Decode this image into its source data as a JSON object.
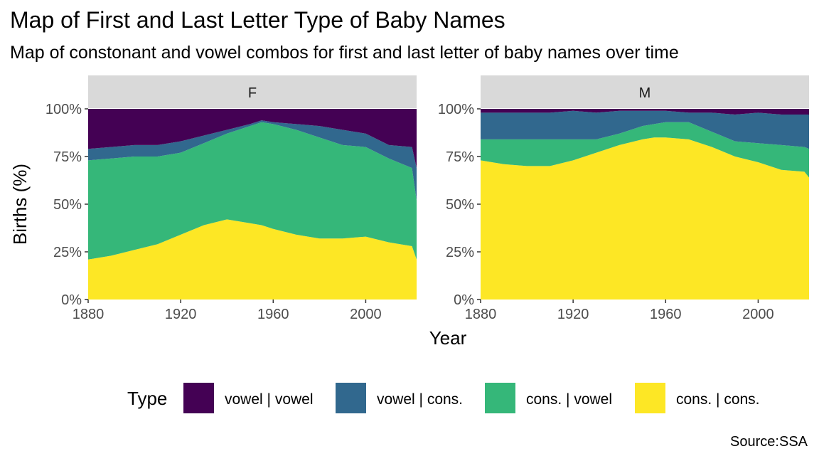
{
  "chart_data": {
    "type": "area",
    "title": "Map of First and Last Letter Type of Baby Names",
    "subtitle": "Map of constonant and vowel combos for first and last letter of baby names over time",
    "xlabel": "Year",
    "ylabel": "Births (%)",
    "caption": "Source:SSA",
    "xlim": [
      1880,
      2022
    ],
    "ylim": [
      0,
      1
    ],
    "x_ticks": [
      1880,
      1920,
      1960,
      2000
    ],
    "y_ticks": [
      0,
      0.25,
      0.5,
      0.75,
      1.0
    ],
    "y_tick_labels": [
      "0%",
      "25%",
      "50%",
      "75%",
      "100%"
    ],
    "stacked": true,
    "legend": {
      "title": "Type",
      "position": "bottom",
      "entries": [
        "vowel | vowel",
        "vowel | cons.",
        "cons. | vowel",
        "cons. | cons."
      ]
    },
    "colors": {
      "vowel | vowel": "#440154",
      "vowel | cons.": "#31688E",
      "cons. | vowel": "#35B779",
      "cons. | cons.": "#FDE725"
    },
    "x": [
      1880,
      1890,
      1900,
      1910,
      1920,
      1930,
      1940,
      1950,
      1955,
      1960,
      1970,
      1980,
      1990,
      2000,
      2010,
      2020,
      2022
    ],
    "panels": [
      {
        "label": "F",
        "series": [
          {
            "name": "cons. | cons.",
            "values": [
              0.21,
              0.23,
              0.26,
              0.29,
              0.34,
              0.39,
              0.42,
              0.4,
              0.39,
              0.37,
              0.34,
              0.32,
              0.32,
              0.33,
              0.3,
              0.28,
              0.21
            ]
          },
          {
            "name": "cons. | vowel",
            "values": [
              0.52,
              0.51,
              0.49,
              0.46,
              0.43,
              0.43,
              0.45,
              0.51,
              0.54,
              0.55,
              0.55,
              0.53,
              0.49,
              0.47,
              0.44,
              0.41,
              0.31
            ]
          },
          {
            "name": "vowel | cons.",
            "values": [
              0.06,
              0.06,
              0.06,
              0.06,
              0.06,
              0.04,
              0.02,
              0.01,
              0.01,
              0.01,
              0.03,
              0.06,
              0.08,
              0.07,
              0.07,
              0.11,
              0.17
            ]
          },
          {
            "name": "vowel | vowel",
            "values": [
              0.21,
              0.2,
              0.19,
              0.19,
              0.17,
              0.14,
              0.11,
              0.08,
              0.06,
              0.07,
              0.08,
              0.09,
              0.11,
              0.13,
              0.19,
              0.2,
              0.31
            ]
          }
        ]
      },
      {
        "label": "M",
        "series": [
          {
            "name": "cons. | cons.",
            "values": [
              0.73,
              0.71,
              0.7,
              0.7,
              0.73,
              0.77,
              0.81,
              0.84,
              0.85,
              0.85,
              0.84,
              0.8,
              0.75,
              0.72,
              0.68,
              0.67,
              0.64
            ]
          },
          {
            "name": "cons. | vowel",
            "values": [
              0.11,
              0.13,
              0.14,
              0.14,
              0.11,
              0.07,
              0.06,
              0.07,
              0.07,
              0.08,
              0.09,
              0.08,
              0.08,
              0.1,
              0.13,
              0.13,
              0.15
            ]
          },
          {
            "name": "vowel | cons.",
            "values": [
              0.14,
              0.14,
              0.14,
              0.14,
              0.15,
              0.14,
              0.12,
              0.08,
              0.07,
              0.06,
              0.05,
              0.1,
              0.14,
              0.16,
              0.16,
              0.17,
              0.18
            ]
          },
          {
            "name": "vowel | vowel",
            "values": [
              0.02,
              0.02,
              0.02,
              0.02,
              0.01,
              0.02,
              0.01,
              0.01,
              0.01,
              0.01,
              0.02,
              0.02,
              0.03,
              0.02,
              0.03,
              0.03,
              0.03
            ]
          }
        ]
      }
    ]
  }
}
